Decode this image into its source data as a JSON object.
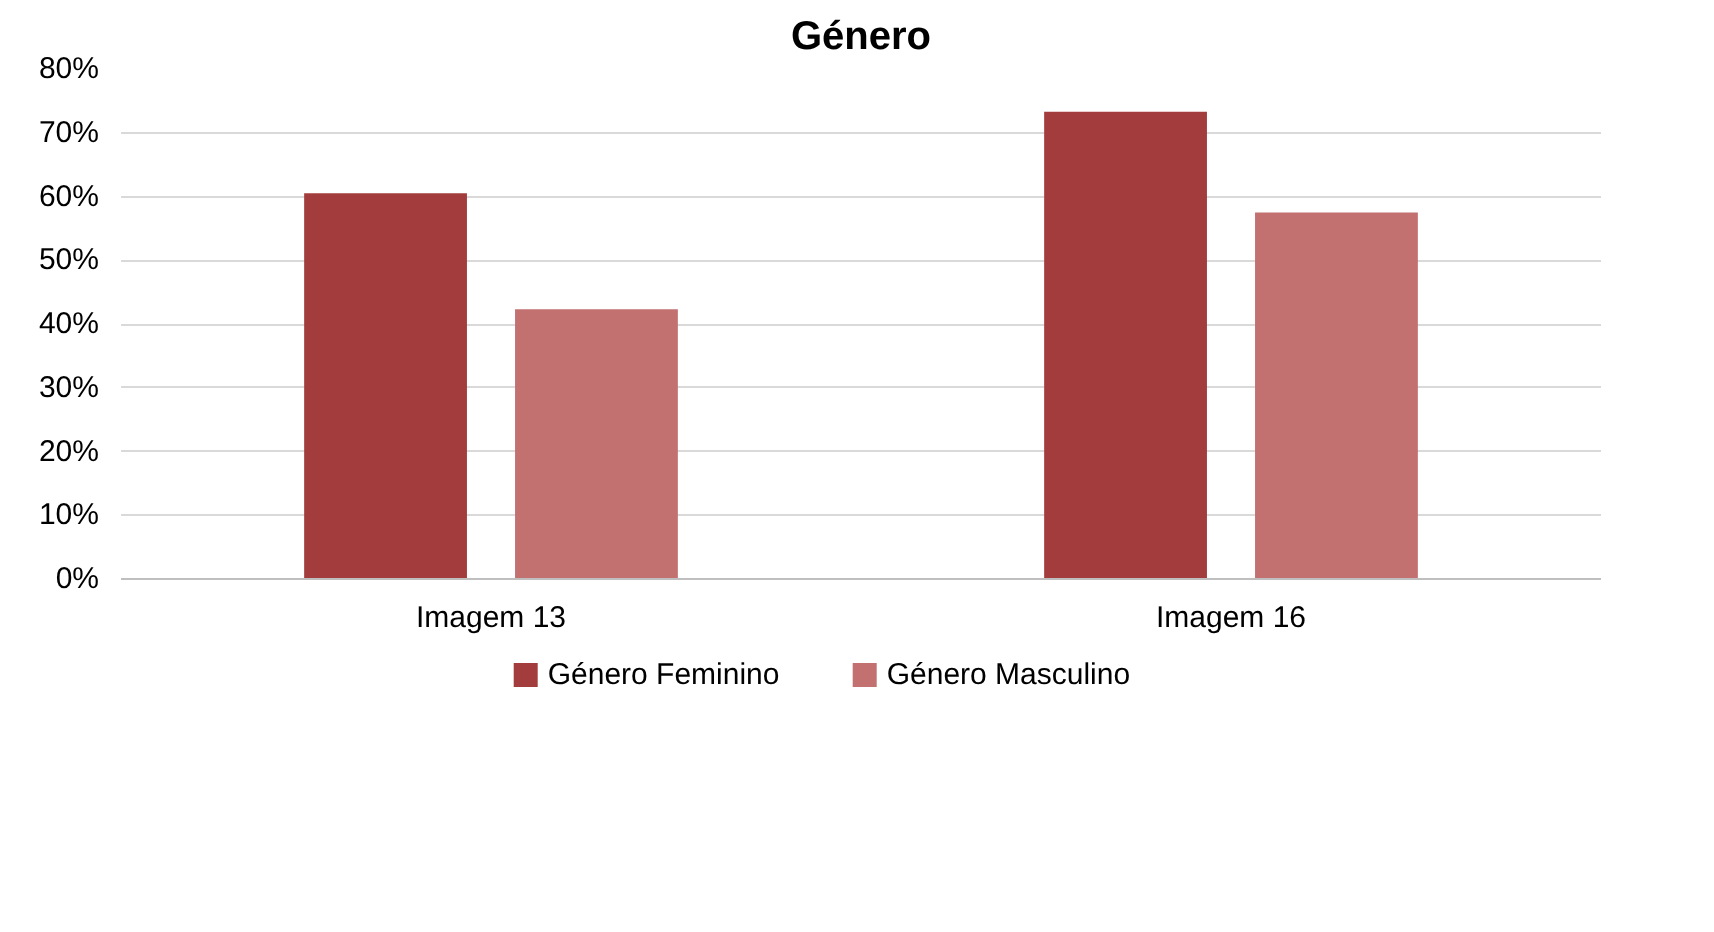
{
  "chart_data": {
    "type": "bar",
    "title": "Género",
    "categories": [
      "Imagem 13",
      "Imagem 16"
    ],
    "series": [
      {
        "name": "Género Feminino",
        "color": "#a33d3d",
        "values": [
          60.5,
          73.3
        ]
      },
      {
        "name": "Género Masculino",
        "color": "#c27070",
        "values": [
          42.3,
          57.5
        ]
      }
    ],
    "ylim": [
      0,
      80
    ],
    "yticks": [
      {
        "value": 0,
        "label": "0%"
      },
      {
        "value": 10,
        "label": "10%"
      },
      {
        "value": 20,
        "label": "20%"
      },
      {
        "value": 30,
        "label": "30%"
      },
      {
        "value": 40,
        "label": "40%"
      },
      {
        "value": 50,
        "label": "50%"
      },
      {
        "value": 60,
        "label": "60%"
      },
      {
        "value": 70,
        "label": "70%"
      },
      {
        "value": 80,
        "label": "80%"
      }
    ],
    "grid": "y",
    "legend": "bottom"
  }
}
